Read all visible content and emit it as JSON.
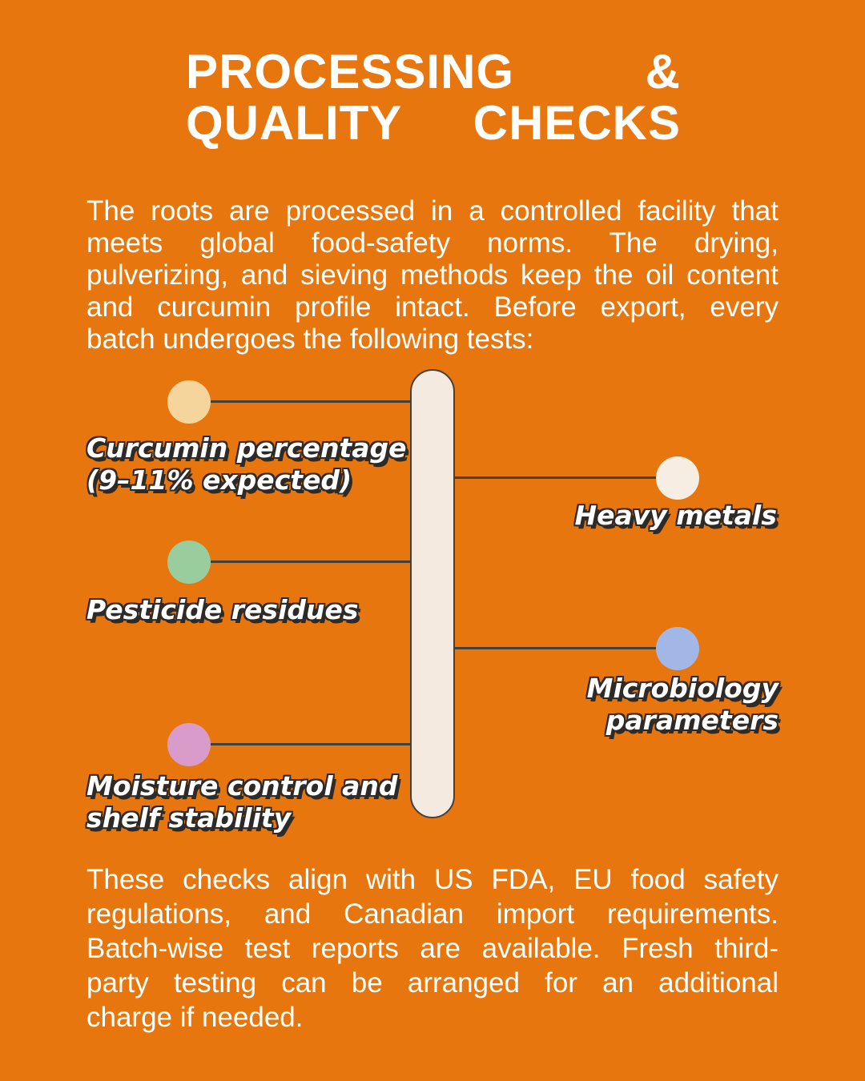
{
  "title": {
    "lines": [
      "PROCESSING &",
      "QUALITY CHECKS"
    ]
  },
  "intro": {
    "lines": [
      "The roots are processed in a controlled facility that",
      "meets global food-safety norms. The drying,",
      "pulverizing, and sieving methods keep the oil content",
      "and curcumin profile intact. Before export, every",
      "batch undergoes the following tests:"
    ]
  },
  "footer": {
    "lines": [
      "These checks align with US FDA, EU food safety",
      "regulations, and Canadian import requirements.",
      "Batch-wise test reports are available. Fresh third-",
      "party testing can be arranged for an additional",
      "charge if needed."
    ]
  },
  "diagram": {
    "items": [
      {
        "key": "curcumin",
        "side": "left",
        "dot_color": "#F6D59C",
        "lines": [
          "Curcumin percentage",
          "(9–11% expected)"
        ]
      },
      {
        "key": "pesticide",
        "side": "left",
        "dot_color": "#9ACD9E",
        "lines": [
          "Pesticide residues"
        ]
      },
      {
        "key": "moisture",
        "side": "left",
        "dot_color": "#D99BCA",
        "lines": [
          "Moisture control and",
          "shelf stability"
        ]
      },
      {
        "key": "heavy_metals",
        "side": "right",
        "dot_color": "#F6EDE3",
        "lines": [
          "Heavy metals"
        ]
      },
      {
        "key": "microbiology",
        "side": "right",
        "dot_color": "#A2B7E5",
        "lines": [
          "Microbiology",
          "parameters"
        ]
      }
    ]
  },
  "colors": {
    "background": "#E8760E",
    "bar_fill": "#F4EAE0",
    "bar_outline": "#46403B",
    "connector": "#46403B",
    "text": "#FFFFFF",
    "label_outline": "#2E2A27"
  }
}
